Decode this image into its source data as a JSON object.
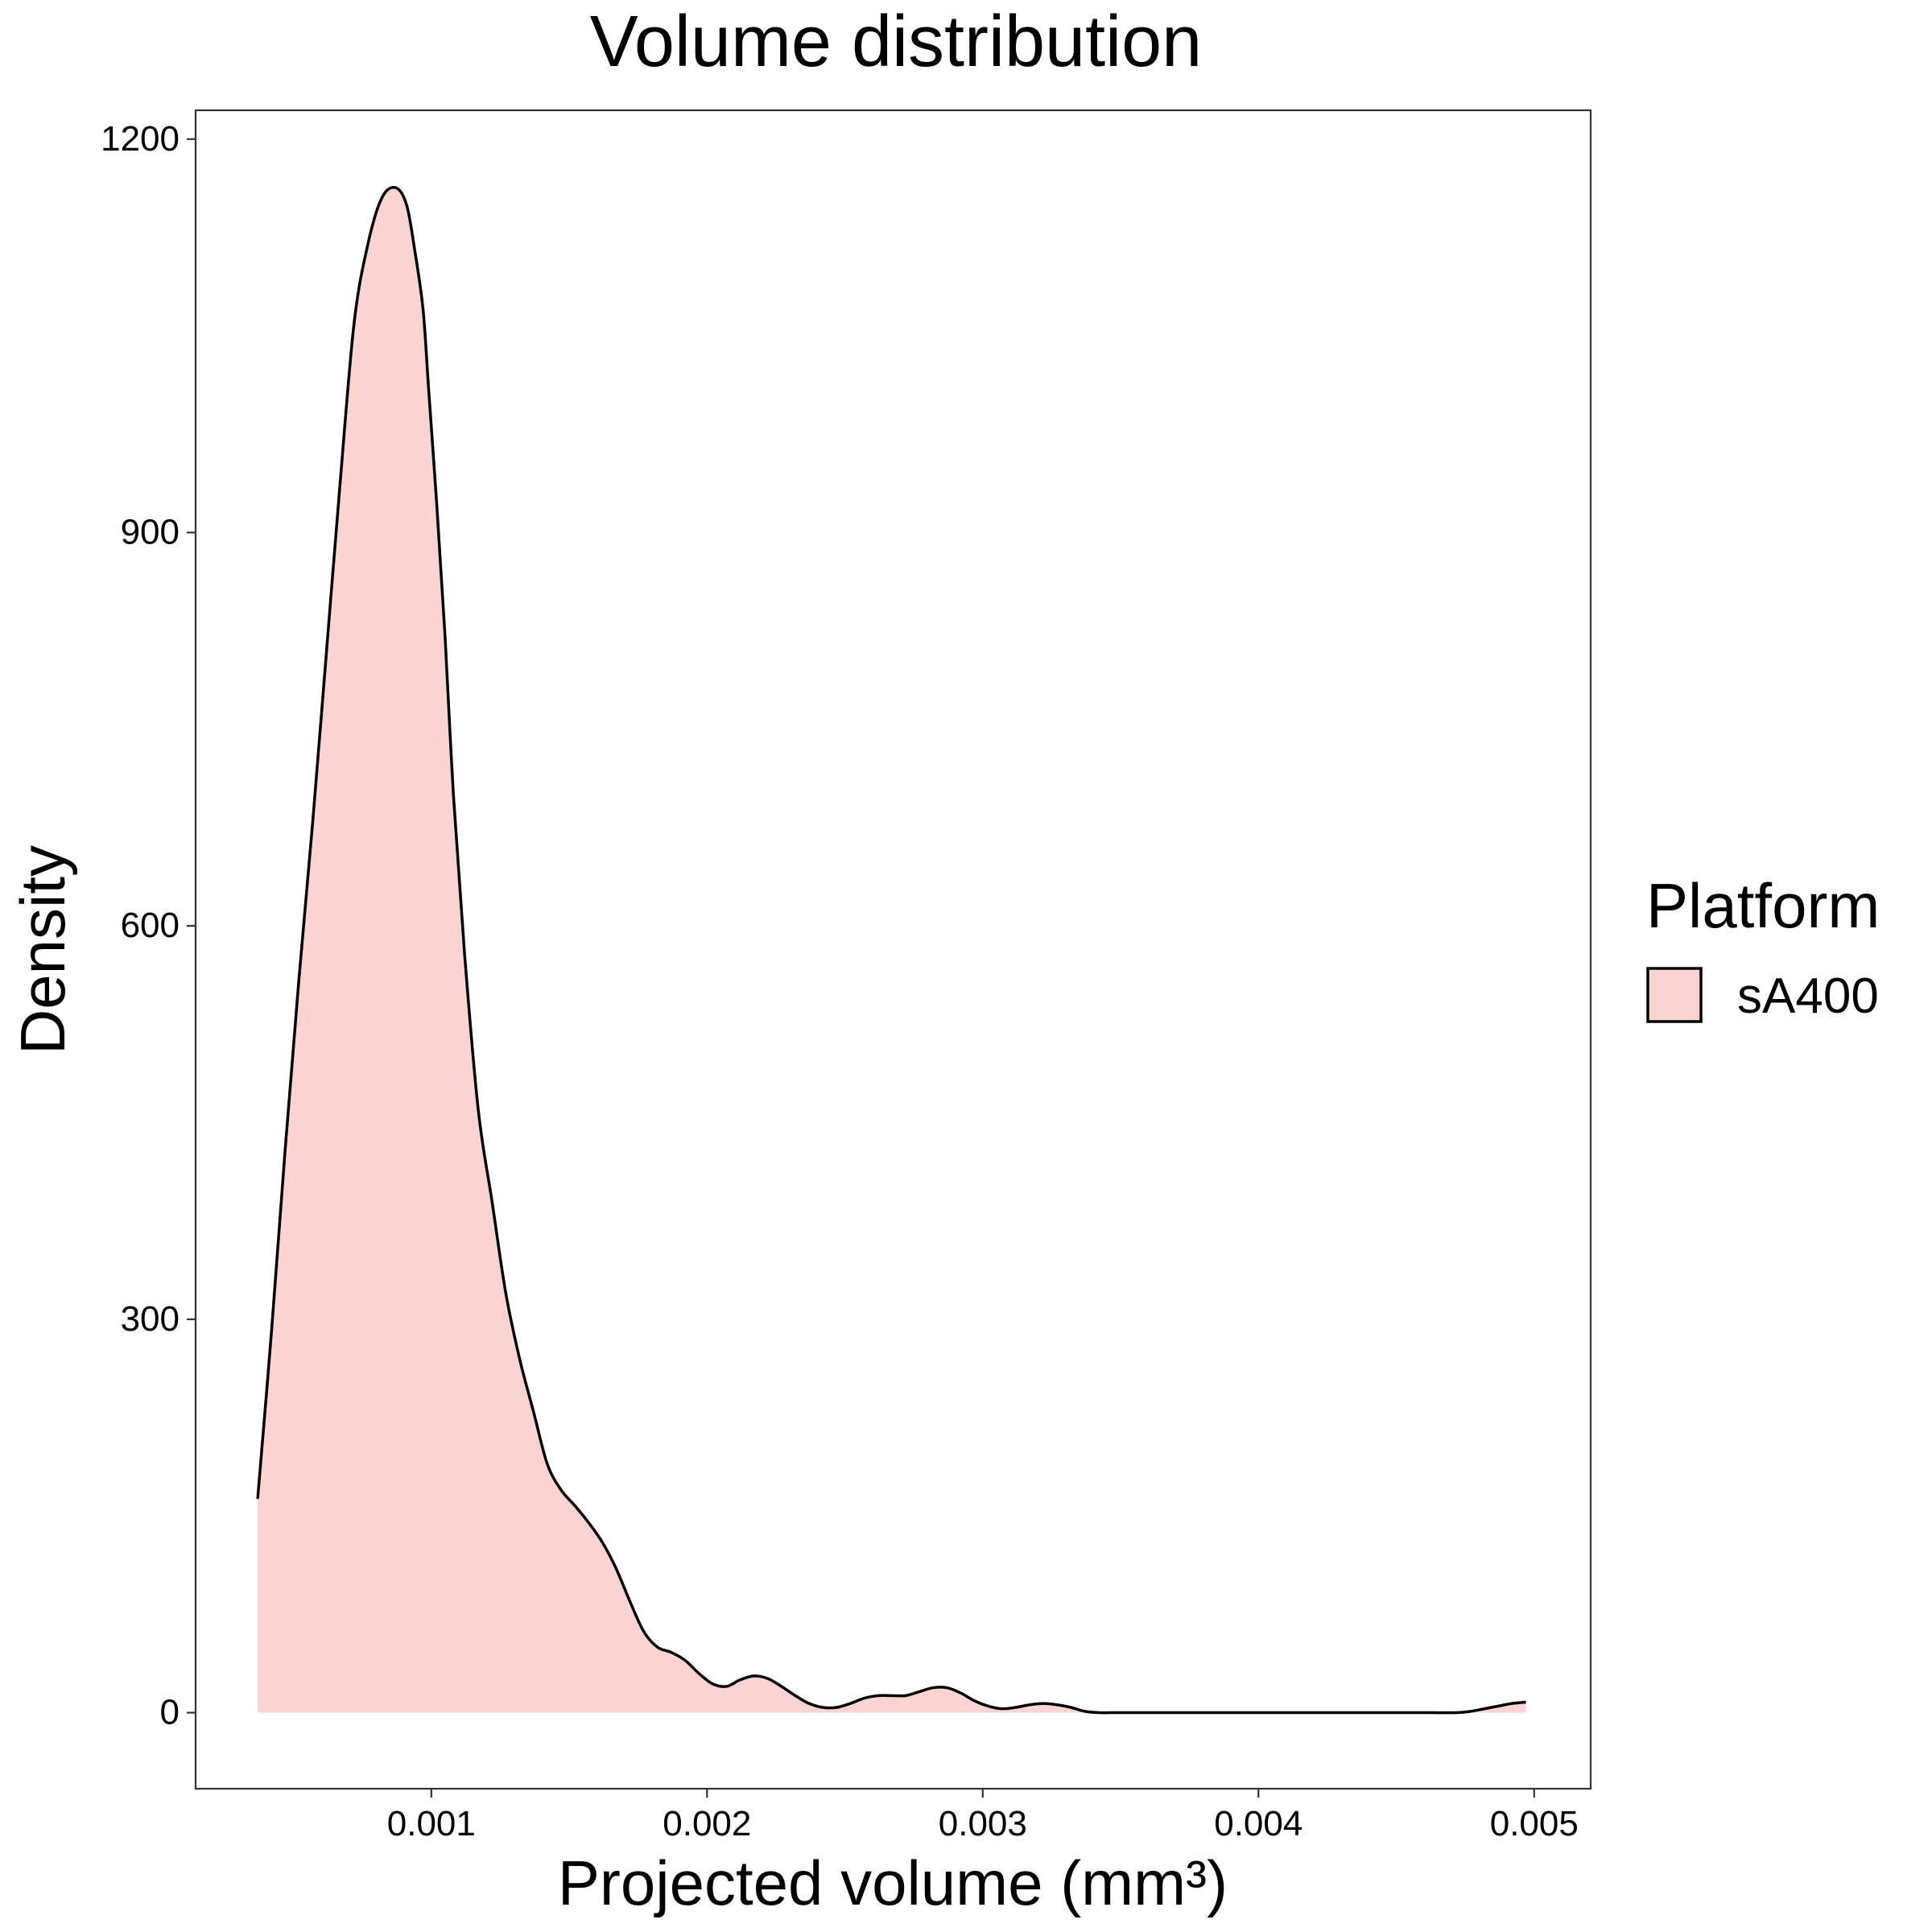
{
  "chart_data": {
    "type": "area",
    "title": "Volume distribution",
    "xlabel": "Projected volume (mm³)",
    "ylabel": "Density",
    "xlim": [
      0.000145,
      0.005205
    ],
    "ylim": [
      -58,
      1222
    ],
    "x_ticks": [
      {
        "value": 0.001,
        "label": "0.001"
      },
      {
        "value": 0.002,
        "label": "0.002"
      },
      {
        "value": 0.003,
        "label": "0.003"
      },
      {
        "value": 0.004,
        "label": "0.004"
      },
      {
        "value": 0.005,
        "label": "0.005"
      }
    ],
    "y_ticks": [
      {
        "value": 0,
        "label": "0"
      },
      {
        "value": 300,
        "label": "300"
      },
      {
        "value": 600,
        "label": "600"
      },
      {
        "value": 900,
        "label": "900"
      },
      {
        "value": 1200,
        "label": "1200"
      }
    ],
    "grid": false,
    "legend": {
      "title": "Platform",
      "position": "right",
      "entries": [
        {
          "label": "sA400",
          "color": "#F8766D"
        }
      ]
    },
    "series": [
      {
        "name": "sA400",
        "fill": "#FBD4D2",
        "stroke": "#000000",
        "x": [
          0.00037,
          0.00042,
          0.00047,
          0.00052,
          0.00057,
          0.00062,
          0.00067,
          0.00072,
          0.00077,
          0.00082,
          0.00087,
          0.00091,
          0.00094,
          0.00097,
          0.00099,
          0.00102,
          0.00105,
          0.00108,
          0.00112,
          0.00117,
          0.00122,
          0.00127,
          0.00132,
          0.00137,
          0.00142,
          0.00147,
          0.00152,
          0.00157,
          0.00162,
          0.00167,
          0.00172,
          0.00177,
          0.00182,
          0.00187,
          0.00192,
          0.00197,
          0.00202,
          0.00207,
          0.00212,
          0.00217,
          0.00222,
          0.00227,
          0.00232,
          0.00237,
          0.00242,
          0.00247,
          0.00252,
          0.00257,
          0.00262,
          0.00267,
          0.00272,
          0.00277,
          0.00282,
          0.00287,
          0.00292,
          0.00297,
          0.00302,
          0.00307,
          0.00312,
          0.00317,
          0.00322,
          0.00327,
          0.00332,
          0.00337,
          0.00342,
          0.00347,
          0.00352,
          0.00357,
          0.00362,
          0.00367,
          0.00372,
          0.00377,
          0.00382,
          0.00387,
          0.00392,
          0.00397,
          0.00402,
          0.00412,
          0.00422,
          0.00432,
          0.00442,
          0.00452,
          0.00462,
          0.00472,
          0.00477,
          0.00482,
          0.00487,
          0.00492,
          0.00497
        ],
        "y": [
          163,
          290,
          430,
          560,
          680,
          810,
          940,
          1060,
          1120,
          1155,
          1163,
          1150,
          1115,
          1070,
          1010,
          920,
          820,
          700,
          580,
          460,
          390,
          320,
          270,
          230,
          190,
          170,
          158,
          145,
          130,
          110,
          85,
          62,
          50,
          46,
          40,
          30,
          22,
          20,
          25,
          28,
          26,
          20,
          13,
          7,
          4,
          4,
          7,
          11,
          13,
          13,
          13,
          16,
          19,
          19,
          15,
          9,
          5,
          3,
          4,
          6,
          7,
          6,
          4,
          1,
          0,
          0,
          0,
          0,
          0,
          0,
          0,
          0,
          0,
          0,
          0,
          0,
          0,
          0,
          0,
          0,
          0,
          0,
          0,
          0,
          1,
          3,
          5,
          7,
          8
        ]
      }
    ]
  }
}
